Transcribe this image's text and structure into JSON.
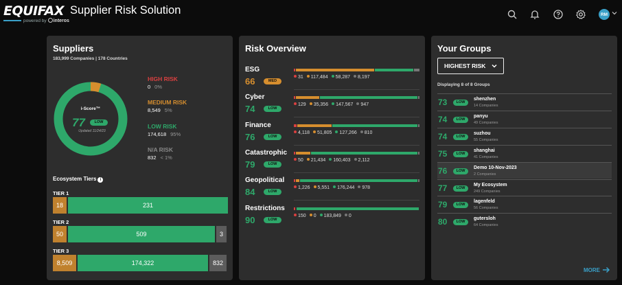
{
  "header": {
    "logo_text": "EQUIFAX",
    "app_title": "Supplier Risk Solution",
    "powered_by": "powered by",
    "powered_brand": "interos",
    "avatar_initials": "RM"
  },
  "colors": {
    "low": "#2ea86a",
    "medium": "#d68e2e",
    "high": "#d94040",
    "na": "#777777",
    "accent": "#3aa0c8",
    "panel": "#2d2d2d"
  },
  "suppliers": {
    "title": "Suppliers",
    "summary": "183,999 Companies | 178 Countries",
    "iscore_label": "i-Score™",
    "iscore_value": "77",
    "iscore_badge": "LOW",
    "iscore_updated": "Updated 11/24/23",
    "risk_breakdown": [
      {
        "label": "HIGH RISK",
        "count": "0",
        "pct": "0%",
        "color": "#d94040",
        "fraction": 0.0
      },
      {
        "label": "MEDIUM RISK",
        "count": "8,549",
        "pct": "5%",
        "color": "#d68e2e",
        "fraction": 0.046
      },
      {
        "label": "LOW RISK",
        "count": "174,618",
        "pct": "95%",
        "color": "#2ea86a",
        "fraction": 0.949
      },
      {
        "label": "N/A RISK",
        "count": "832",
        "pct": "< 1%",
        "color": "#777777",
        "fraction": 0.005
      }
    ],
    "ecosystem_title": "Ecosystem Tiers",
    "tiers": [
      {
        "label": "TIER 1",
        "medium": "18",
        "low": "231",
        "na": ""
      },
      {
        "label": "TIER 2",
        "medium": "50",
        "low": "509",
        "na": "3"
      },
      {
        "label": "TIER 3",
        "medium": "8,509",
        "low": "174,322",
        "na": "832"
      }
    ]
  },
  "risk_overview": {
    "title": "Risk Overview",
    "categories": [
      {
        "name": "ESG",
        "score": "66",
        "badge": "MED",
        "level": "med",
        "counts": [
          "31",
          "117,484",
          "58,287",
          "8,197"
        ]
      },
      {
        "name": "Cyber",
        "score": "74",
        "badge": "LOW",
        "level": "low",
        "counts": [
          "129",
          "35,356",
          "147,567",
          "947"
        ]
      },
      {
        "name": "Finance",
        "score": "76",
        "badge": "LOW",
        "level": "low",
        "counts": [
          "4,118",
          "51,805",
          "127,266",
          "810"
        ]
      },
      {
        "name": "Catastrophic",
        "score": "79",
        "badge": "LOW",
        "level": "low",
        "counts": [
          "50",
          "21,434",
          "160,403",
          "2,112"
        ]
      },
      {
        "name": "Geopolitical",
        "score": "84",
        "badge": "LOW",
        "level": "low",
        "counts": [
          "1,226",
          "5,551",
          "176,244",
          "978"
        ]
      },
      {
        "name": "Restrictions",
        "score": "90",
        "badge": "LOW",
        "level": "low",
        "counts": [
          "150",
          "0",
          "183,849",
          "0"
        ]
      }
    ]
  },
  "groups": {
    "title": "Your Groups",
    "filter_value": "HIGHEST RISK",
    "displaying": "Displaying 8 of 8 Groups",
    "items": [
      {
        "score": "73",
        "badge": "LOW",
        "name": "shenzhen",
        "count": "14 Companies"
      },
      {
        "score": "74",
        "badge": "LOW",
        "name": "panyu",
        "count": "49 Companies"
      },
      {
        "score": "74",
        "badge": "LOW",
        "name": "suzhou",
        "count": "55 Companies"
      },
      {
        "score": "75",
        "badge": "LOW",
        "name": "shanghai",
        "count": "41 Companies"
      },
      {
        "score": "76",
        "badge": "LOW",
        "name": "Demo 10-Nov-2023",
        "count": "2 Companies"
      },
      {
        "score": "77",
        "badge": "LOW",
        "name": "My Ecosystem",
        "count": "249 Companies"
      },
      {
        "score": "79",
        "badge": "LOW",
        "name": "lagenfeld",
        "count": "56 Companies"
      },
      {
        "score": "80",
        "badge": "LOW",
        "name": "gutersloh",
        "count": "64 Companies"
      }
    ],
    "more_label": "MORE"
  }
}
